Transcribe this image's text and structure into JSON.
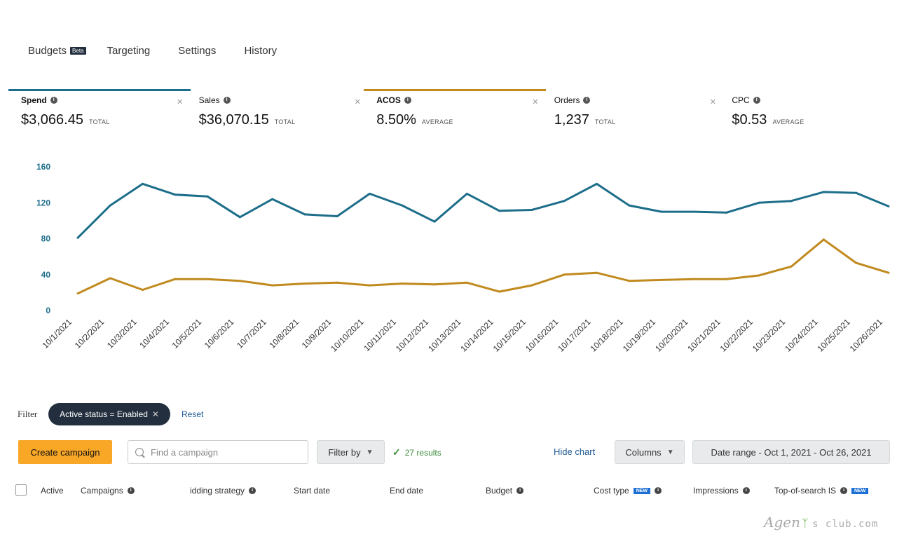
{
  "tabs": [
    {
      "label": "Budgets",
      "badge": "Beta"
    },
    {
      "label": "Targeting"
    },
    {
      "label": "Settings"
    },
    {
      "label": "History"
    }
  ],
  "metrics": [
    {
      "label": "Spend",
      "value": "$3,066.45",
      "unit": "TOTAL",
      "selected": true,
      "color": "#1d6e8a"
    },
    {
      "label": "Sales",
      "value": "$36,070.15",
      "unit": "TOTAL",
      "selected": false
    },
    {
      "label": "ACOS",
      "value": "8.50%",
      "unit": "AVERAGE",
      "selected": true,
      "color": "#c08a1e"
    },
    {
      "label": "Orders",
      "value": "1,237",
      "unit": "TOTAL",
      "selected": false
    },
    {
      "label": "CPC",
      "value": "$0.53",
      "unit": "AVERAGE",
      "selected": false
    }
  ],
  "chart_data": {
    "type": "line",
    "x": [
      "10/1/2021",
      "10/2/2021",
      "10/3/2021",
      "10/4/2021",
      "10/5/2021",
      "10/6/2021",
      "10/7/2021",
      "10/8/2021",
      "10/9/2021",
      "10/10/2021",
      "10/11/2021",
      "10/12/2021",
      "10/13/2021",
      "10/14/2021",
      "10/15/2021",
      "10/16/2021",
      "10/17/2021",
      "10/18/2021",
      "10/19/2021",
      "10/20/2021",
      "10/21/2021",
      "10/22/2021",
      "10/23/2021",
      "10/24/2021",
      "10/25/2021",
      "10/26/2021"
    ],
    "series": [
      {
        "color": "#1d6e8a",
        "values": [
          81,
          117,
          141,
          129,
          127,
          104,
          124,
          107,
          105,
          130,
          117,
          99,
          130,
          111,
          112,
          122,
          141,
          117,
          110,
          110,
          109,
          120,
          122,
          132,
          131,
          116
        ]
      },
      {
        "color": "#c08a1e",
        "values": [
          19,
          36,
          23,
          35,
          35,
          33,
          28,
          30,
          31,
          28,
          30,
          29,
          31,
          21,
          28,
          40,
          42,
          33,
          34,
          35,
          35,
          39,
          49,
          79,
          53,
          42
        ]
      }
    ],
    "yticks": [
      0,
      40,
      80,
      120,
      160
    ],
    "ylim": [
      0,
      160
    ],
    "grid": false,
    "title": "",
    "xlabel": "",
    "ylabel": ""
  },
  "filter": {
    "label": "Filter",
    "chip": "Active status = Enabled",
    "reset": "Reset"
  },
  "toolbar": {
    "create": "Create campaign",
    "search_placeholder": "Find a campaign",
    "filter_by": "Filter by",
    "results": "27 results",
    "hide_chart": "Hide chart",
    "columns": "Columns",
    "date_range": "Date range - Oct 1, 2021 - Oct 26, 2021"
  },
  "columns": [
    {
      "label": "Active"
    },
    {
      "label": "Campaigns",
      "info": true
    },
    {
      "label": "idding strategy",
      "info": true
    },
    {
      "label": "Start date"
    },
    {
      "label": "End date"
    },
    {
      "label": "Budget",
      "info": true
    },
    {
      "label": "Cost type",
      "badge": "NEW",
      "info": true
    },
    {
      "label": "Impressions",
      "info": true
    },
    {
      "label": "Top-of-search IS",
      "info": true,
      "badge": "NEW"
    }
  ],
  "watermark": {
    "part1": "Agen",
    "part2": "s club.com"
  }
}
